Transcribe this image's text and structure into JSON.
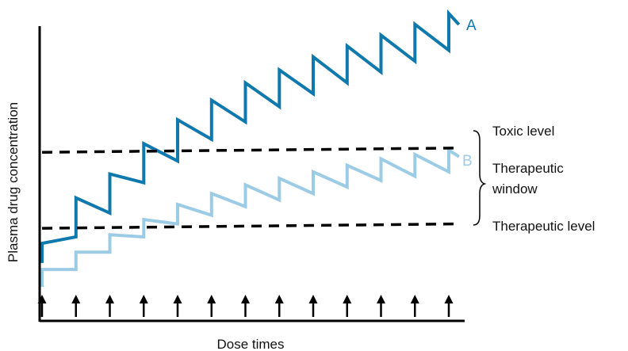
{
  "chart_data": {
    "type": "line",
    "xlabel": "Dose times",
    "ylabel": "Plasma drug concentration",
    "axis_ticks": "none",
    "grid": false,
    "dose_count": 13,
    "series": [
      {
        "name": "A",
        "color": "#0f78ad",
        "peaks": [
          2.0,
          4.1,
          5.2,
          6.6,
          7.7,
          8.6,
          9.4,
          10.0,
          10.6,
          11.1,
          11.6,
          12.1,
          12.6
        ],
        "troughs": [
          1.1,
          2.3,
          3.4,
          4.8,
          5.8,
          6.8,
          7.6,
          8.3,
          8.9,
          9.4,
          9.9,
          10.4,
          10.9
        ]
      },
      {
        "name": "B",
        "color": "#9ccbe6",
        "peaks": [
          0.8,
          1.6,
          2.4,
          3.1,
          3.8,
          4.3,
          4.7,
          5.0,
          5.3,
          5.6,
          5.9,
          6.1,
          6.3
        ],
        "troughs": [
          0.0,
          0.8,
          1.6,
          2.3,
          2.9,
          3.3,
          3.7,
          4.0,
          4.3,
          4.6,
          4.9,
          5.1,
          5.3
        ]
      }
    ],
    "reference_lines": [
      {
        "label": "Toxic level",
        "value_start": 6.2,
        "value_end": 6.4,
        "style": "dashed"
      },
      {
        "label": "Therapeutic level",
        "value_start": 2.7,
        "value_end": 2.9,
        "style": "dashed"
      }
    ],
    "bracket_label": [
      "Therapeutic",
      "window"
    ],
    "ylim": [
      -1.1,
      13.7
    ]
  }
}
